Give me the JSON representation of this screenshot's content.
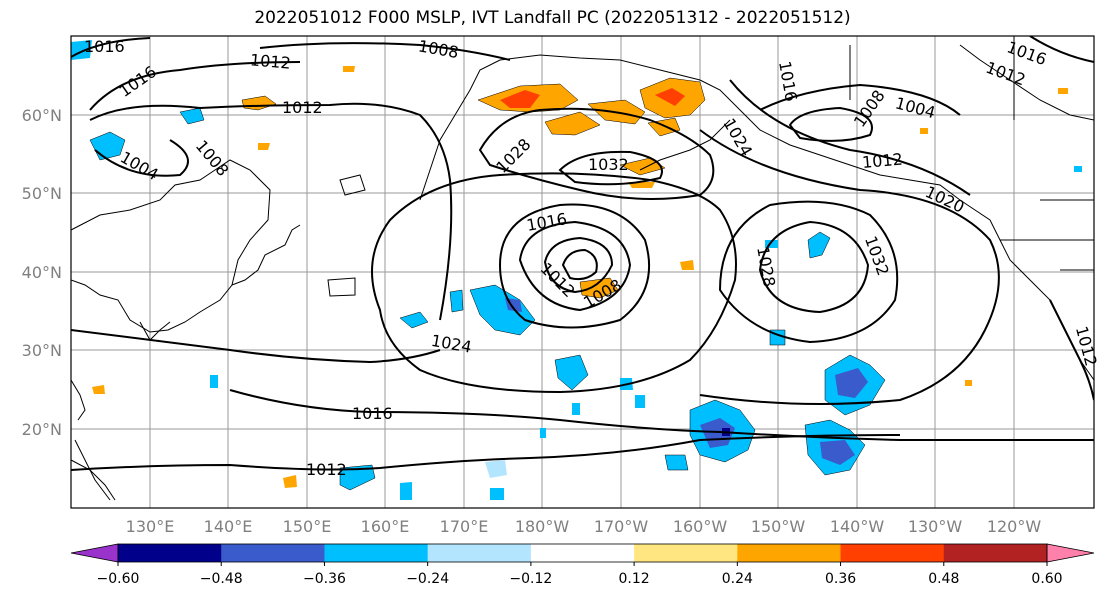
{
  "title": "2022051012 F000 MSLP, IVT Landfall PC (2022051312 - 2022051512)",
  "lat_labels": [
    "60°N",
    "50°N",
    "40°N",
    "30°N",
    "20°N"
  ],
  "lon_labels": [
    "130°E",
    "140°E",
    "150°E",
    "160°E",
    "170°E",
    "180°W",
    "170°W",
    "160°W",
    "150°W",
    "140°W",
    "130°W",
    "120°W"
  ],
  "isobar_labels": [
    "1016",
    "1016",
    "1012",
    "1008",
    "1012",
    "1004",
    "1008",
    "1028",
    "1032",
    "1024",
    "1016",
    "1016",
    "1012",
    "1008",
    "1004",
    "1012",
    "1020",
    "1016",
    "1012",
    "1008",
    "1028",
    "1032",
    "1024",
    "1016",
    "1012",
    "1012"
  ],
  "colorbar": {
    "ticks": [
      "−0.60",
      "−0.48",
      "−0.36",
      "−0.24",
      "−0.12",
      "0.12",
      "0.24",
      "0.36",
      "0.48",
      "0.60"
    ],
    "colors": [
      "#9933cc",
      "#00008b",
      "#3a5bcc",
      "#00bfff",
      "#b3e5ff",
      "#ffffff",
      "#ffe680",
      "#ffa500",
      "#ff4000",
      "#b22222",
      "#ff80aa"
    ]
  }
}
